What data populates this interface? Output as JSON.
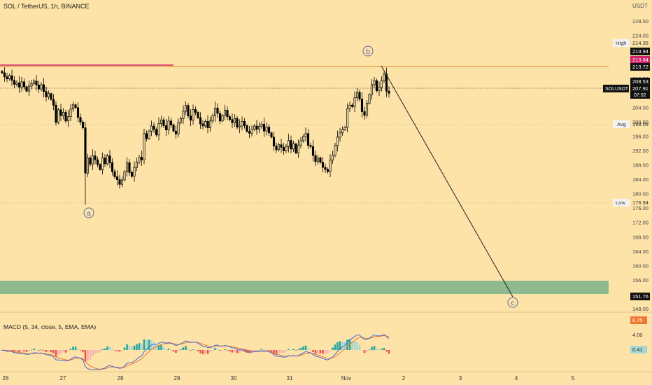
{
  "header": {
    "symbol_title": "SOL / TetherUS, 1h, BINANCE",
    "currency": "USDT"
  },
  "colors": {
    "background": "#fde3a7",
    "candle": "#000000",
    "resistance_line": "#d0206a",
    "high_line": "#e08a2a",
    "price_line": "#555555",
    "zone": "#8fb98f",
    "macd_line": "#3f6ae0",
    "signal_line": "#f07830",
    "hist_pos": "#26a69a",
    "hist_pos_light": "#a5d8d2",
    "hist_neg": "#ef5350",
    "hist_neg_light": "#f5b3b0"
  },
  "price_labels": {
    "high_label": "High",
    "high_value": "214.35",
    "red_value": "213.84",
    "high_close_value": "213.94",
    "level_value": "213.72",
    "dark_value": "208.53",
    "symbol_tag": "SOLUSDT",
    "last_value": "207.91",
    "countdown": "07:02",
    "avg_label": "Avg",
    "avg_value": "198.09",
    "low_label": "Low",
    "low_value": "176.94",
    "zone_value": "151.76"
  },
  "macd": {
    "title": "MACD (5, 34, close, 5, EMA, EMA)",
    "val1": "6.75",
    "val2": "4.00",
    "val3": "0.41"
  },
  "wave_labels": {
    "a": "a",
    "b": "b",
    "c": "c"
  },
  "chart_data": {
    "type": "candlestick",
    "title": "SOL / TetherUS, 1h, BINANCE",
    "y_axis": {
      "unit": "USDT",
      "ticks": [
        148,
        152,
        156,
        160,
        164,
        168,
        172,
        176,
        180,
        184,
        188,
        192,
        196,
        200,
        204,
        208,
        212,
        216,
        220,
        224,
        228,
        232
      ],
      "range": [
        145,
        232
      ]
    },
    "x_axis": {
      "ticks": [
        "26",
        "27",
        "28",
        "29",
        "30",
        "31",
        "Nov",
        "2",
        "3",
        "4",
        "5"
      ]
    },
    "closes": [
      213.6,
      212.5,
      211.9,
      212.8,
      211.5,
      210.4,
      210.8,
      209.6,
      211.1,
      209.7,
      208.5,
      209.9,
      210.6,
      211.3,
      210.2,
      209.1,
      210.3,
      208.4,
      206.9,
      207.8,
      206.2,
      204.6,
      199.8,
      203.3,
      201.7,
      202.6,
      200.2,
      201.4,
      203.5,
      204.7,
      203.9,
      201.2,
      199.9,
      198.3,
      185.7,
      189.9,
      188.2,
      190.5,
      189.4,
      188.1,
      186.7,
      189.9,
      188.3,
      190.5,
      188.6,
      186.1,
      184.7,
      183.9,
      182.6,
      183.8,
      186.1,
      188.6,
      185.9,
      184.8,
      187.3,
      188.8,
      190.1,
      189.4,
      196.7,
      195.3,
      197.4,
      198.8,
      197.8,
      196.3,
      199.5,
      200.5,
      198.9,
      197.7,
      200.2,
      199.1,
      197.4,
      196.6,
      199.8,
      200.9,
      202.9,
      204.5,
      201.6,
      200.4,
      203.4,
      202.6,
      201.1,
      199.4,
      198.8,
      200.1,
      198.3,
      200.2,
      201.6,
      203.8,
      202.3,
      200.2,
      201.8,
      203.2,
      201.4,
      200.6,
      199.7,
      200.9,
      198.5,
      198.8,
      200.1,
      198.9,
      197.3,
      196.8,
      197.9,
      198.8,
      197.9,
      198.7,
      199.3,
      197.4,
      198.5,
      196.9,
      195.7,
      193.2,
      192.2,
      193.6,
      192.9,
      191.9,
      193.1,
      194.8,
      192.4,
      193.8,
      191.3,
      193.5,
      194.7,
      195.9,
      196.7,
      193.4,
      193.1,
      190.6,
      188.9,
      189.9,
      188.7,
      187.3,
      186.7,
      186.1,
      189.3,
      190.7,
      193.4,
      195.7,
      196.9,
      197.8,
      198.4,
      203.6,
      204.6,
      204.2,
      206.7,
      208.2,
      206.3,
      202.8,
      201.8,
      205.1,
      207.5,
      210.3,
      211.4,
      208.6,
      209.5,
      211.4,
      213.2,
      208.5,
      207.9
    ],
    "first_candle_x": 3,
    "candle_spacing": 3.5,
    "levels": {
      "high": 214.35,
      "resistance": 213.84,
      "current": 207.91,
      "avg": 198.09,
      "low": 176.94,
      "zone_top": 155.3,
      "zone_bottom": 152.2,
      "target": 151.76
    },
    "wave_path": [
      {
        "label": "b",
        "date": "Nov 1",
        "price": 213.72
      },
      {
        "label": "c",
        "date": "Nov 4",
        "price": 151.76
      }
    ],
    "macd_params": "MACD (5, 34, close, 5, EMA, EMA)",
    "macd_current": {
      "macd": 6.75,
      "signal": 4.0,
      "histogram": 0.41
    }
  }
}
